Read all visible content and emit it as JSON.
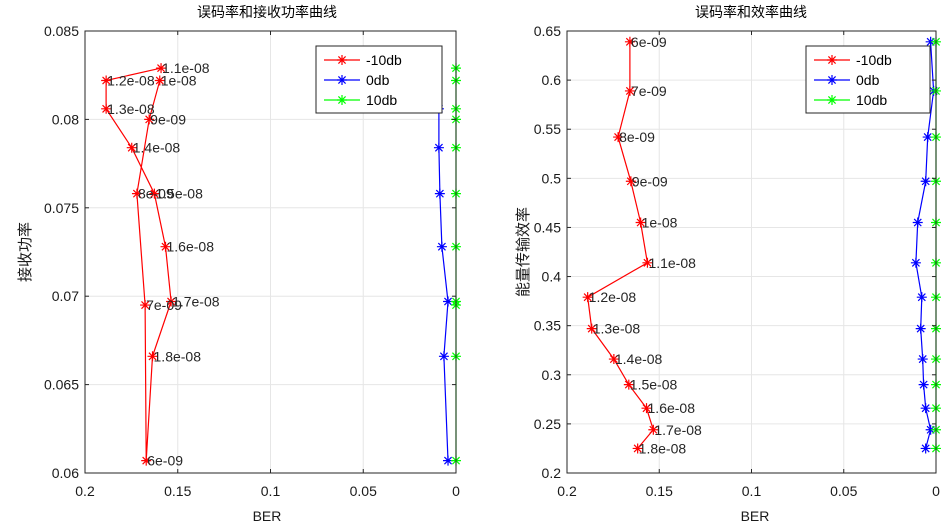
{
  "chart_data": [
    {
      "type": "line",
      "title": "误码率和接收功率曲线",
      "xlabel": "BER",
      "ylabel": "接收功率",
      "xlim": [
        0.2,
        0
      ],
      "ylim": [
        0.06,
        0.085
      ],
      "x_ticks": [
        "0.2",
        "0.15",
        "0.1",
        "0.05",
        "0"
      ],
      "y_ticks": [
        "0.06",
        "0.065",
        "0.07",
        "0.075",
        "0.08",
        "0.085"
      ],
      "grid": true,
      "legend": "top-right",
      "series": [
        {
          "name": "-10db",
          "color": "#ff0000",
          "points": [
            {
              "x": 0.159,
              "y": 0.0829,
              "label": "1.1e-08"
            },
            {
              "x": 0.1886,
              "y": 0.0822,
              "label": "1.2e-08"
            },
            {
              "x": 0.1886,
              "y": 0.0806,
              "label": "1.3e-08"
            },
            {
              "x": 0.1748,
              "y": 0.0784,
              "label": "1.4e-08"
            },
            {
              "x": 0.1626,
              "y": 0.0758,
              "label": "1.5e-08"
            },
            {
              "x": 0.1566,
              "y": 0.0728,
              "label": "1.6e-08"
            },
            {
              "x": 0.1536,
              "y": 0.0697,
              "label": "1.7e-08"
            },
            {
              "x": 0.1636,
              "y": 0.0666,
              "label": "1.8e-08"
            },
            {
              "x": 0.167,
              "y": 0.0607,
              "label": "6e-09"
            },
            {
              "x": 0.1676,
              "y": 0.0695,
              "label": "7e-09"
            },
            {
              "x": 0.172,
              "y": 0.0758,
              "label": "8e-09"
            },
            {
              "x": 0.1654,
              "y": 0.08,
              "label": "9e-09"
            },
            {
              "x": 0.1597,
              "y": 0.0822,
              "label": "1e-08"
            }
          ]
        },
        {
          "name": "0db",
          "color": "#0000ff",
          "points": [
            {
              "x": 0.0114,
              "y": 0.0829
            },
            {
              "x": 0.0092,
              "y": 0.0806
            },
            {
              "x": 0.0092,
              "y": 0.0784
            },
            {
              "x": 0.0087,
              "y": 0.0758
            },
            {
              "x": 0.0076,
              "y": 0.0728
            },
            {
              "x": 0.0043,
              "y": 0.0697
            },
            {
              "x": 0.0065,
              "y": 0.0666
            },
            {
              "x": 0.0043,
              "y": 0.0607
            }
          ]
        },
        {
          "name": "10db",
          "color": "#00ff00",
          "points": [
            {
              "x": 0,
              "y": 0.0829
            },
            {
              "x": 0,
              "y": 0.0822
            },
            {
              "x": 0,
              "y": 0.0806
            },
            {
              "x": 0,
              "y": 0.08
            },
            {
              "x": 0,
              "y": 0.0784
            },
            {
              "x": 0,
              "y": 0.0758
            },
            {
              "x": 0,
              "y": 0.0728
            },
            {
              "x": 0,
              "y": 0.0697
            },
            {
              "x": 0,
              "y": 0.0695
            },
            {
              "x": 0,
              "y": 0.0666
            },
            {
              "x": 0,
              "y": 0.0607
            }
          ]
        }
      ]
    },
    {
      "type": "line",
      "title": "误码率和效率曲线",
      "xlabel": "BER",
      "ylabel": "能量传输效率",
      "xlim": [
        0.2,
        0
      ],
      "ylim": [
        0.2,
        0.65
      ],
      "x_ticks": [
        "0.2",
        "0.15",
        "0.1",
        "0.05",
        "0"
      ],
      "y_ticks": [
        "0.2",
        "0.25",
        "0.3",
        "0.35",
        "0.4",
        "0.45",
        "0.5",
        "0.55",
        "0.6",
        "0.65"
      ],
      "grid": true,
      "legend": "top-right",
      "series": [
        {
          "name": "-10db",
          "color": "#ff0000",
          "points": [
            {
              "x": 0.1659,
              "y": 0.639,
              "label": "6e-09"
            },
            {
              "x": 0.1659,
              "y": 0.589,
              "label": "7e-09"
            },
            {
              "x": 0.1723,
              "y": 0.542,
              "label": "8e-09"
            },
            {
              "x": 0.1654,
              "y": 0.497,
              "label": "9e-09"
            },
            {
              "x": 0.1601,
              "y": 0.455,
              "label": "1e-08"
            },
            {
              "x": 0.1564,
              "y": 0.414,
              "label": "1.1e-08"
            },
            {
              "x": 0.1888,
              "y": 0.379,
              "label": "1.2e-08"
            },
            {
              "x": 0.1866,
              "y": 0.347,
              "label": "1.3e-08"
            },
            {
              "x": 0.1746,
              "y": 0.316,
              "label": "1.4e-08"
            },
            {
              "x": 0.1665,
              "y": 0.29,
              "label": "1.5e-08"
            },
            {
              "x": 0.1569,
              "y": 0.266,
              "label": "1.6e-08"
            },
            {
              "x": 0.1532,
              "y": 0.244,
              "label": "1.7e-08"
            },
            {
              "x": 0.1617,
              "y": 0.225,
              "label": "1.8e-08"
            }
          ]
        },
        {
          "name": "0db",
          "color": "#0000ff",
          "points": [
            {
              "x": 0.0029,
              "y": 0.639
            },
            {
              "x": 0.0013,
              "y": 0.589
            },
            {
              "x": 0.0045,
              "y": 0.542
            },
            {
              "x": 0.0056,
              "y": 0.497
            },
            {
              "x": 0.0099,
              "y": 0.455
            },
            {
              "x": 0.0109,
              "y": 0.414
            },
            {
              "x": 0.0077,
              "y": 0.379
            },
            {
              "x": 0.0083,
              "y": 0.347
            },
            {
              "x": 0.0072,
              "y": 0.316
            },
            {
              "x": 0.0067,
              "y": 0.29
            },
            {
              "x": 0.0056,
              "y": 0.266
            },
            {
              "x": 0.0029,
              "y": 0.244
            },
            {
              "x": 0.0056,
              "y": 0.225
            }
          ]
        },
        {
          "name": "10db",
          "color": "#00ff00",
          "points": [
            {
              "x": 0,
              "y": 0.639
            },
            {
              "x": 0,
              "y": 0.589
            },
            {
              "x": 0,
              "y": 0.542
            },
            {
              "x": 0,
              "y": 0.497
            },
            {
              "x": 0,
              "y": 0.455
            },
            {
              "x": 0,
              "y": 0.414
            },
            {
              "x": 0,
              "y": 0.379
            },
            {
              "x": 0,
              "y": 0.347
            },
            {
              "x": 0,
              "y": 0.316
            },
            {
              "x": 0,
              "y": 0.29
            },
            {
              "x": 0,
              "y": 0.266
            },
            {
              "x": 0,
              "y": 0.244
            },
            {
              "x": 0,
              "y": 0.225
            }
          ]
        }
      ]
    }
  ]
}
